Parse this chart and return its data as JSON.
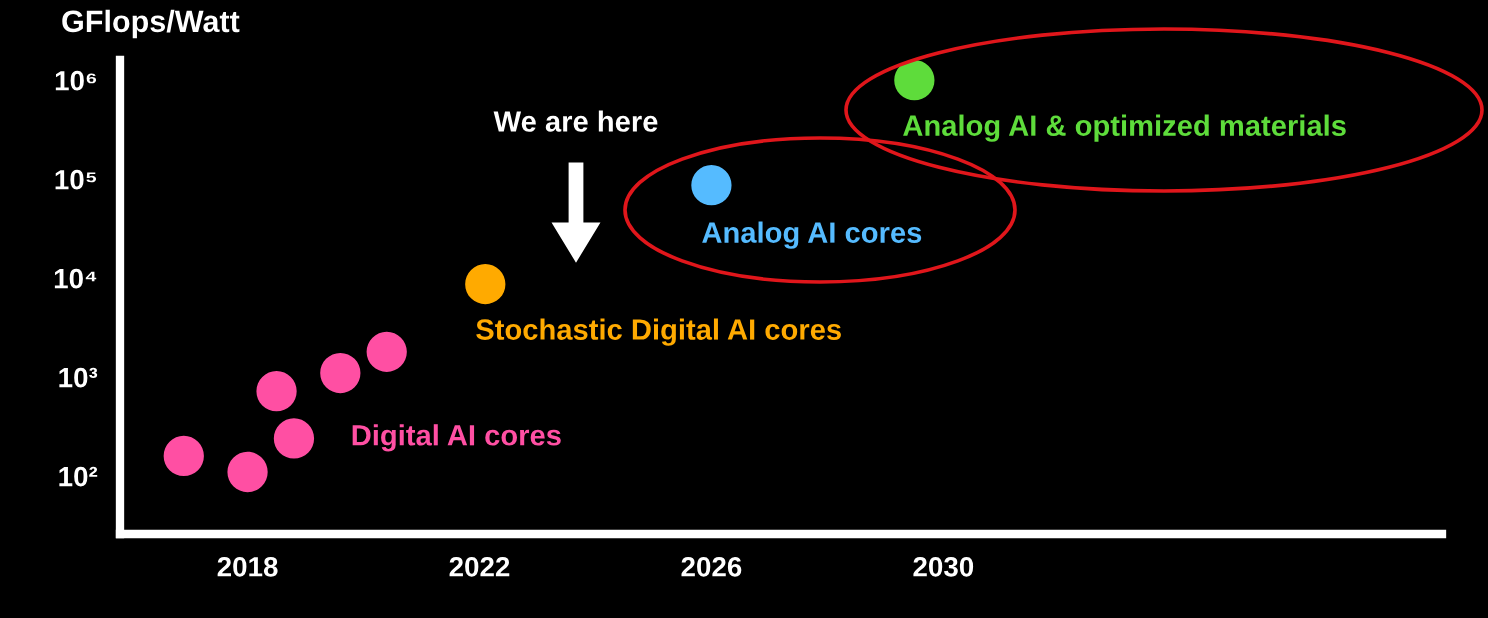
{
  "chart_data": {
    "type": "scatter",
    "ylabel": "GFlops/Watt",
    "log": "y",
    "marker": "circle",
    "grid": false,
    "legend": false,
    "xlim": [
      2015.8,
      2038.6
    ],
    "xticks": [
      2018,
      2022,
      2026,
      2030
    ],
    "ylim": [
      26,
      1600000
    ],
    "yticks": [
      {
        "value": 100,
        "label": "10²"
      },
      {
        "value": 1000,
        "label": "10³"
      },
      {
        "value": 10000,
        "label": "10⁴"
      },
      {
        "value": 100000,
        "label": "10⁵"
      },
      {
        "value": 1000000,
        "label": "10⁶"
      }
    ],
    "series": [
      {
        "name": "Digital AI cores",
        "color": "#ff4fa3",
        "x": [
          2016.9,
          2018.0,
          2018.5,
          2018.8,
          2019.6,
          2020.4
        ],
        "values": [
          160,
          110,
          720,
          240,
          1100,
          1800
        ]
      },
      {
        "name": "Stochastic Digital AI cores",
        "color": "#ffaa00",
        "x": [
          2022.1
        ],
        "values": [
          8700
        ]
      },
      {
        "name": "Analog AI cores",
        "color": "#55bbff",
        "x": [
          2026.0
        ],
        "values": [
          87000
        ]
      },
      {
        "name": "Analog AI & optimized materials",
        "color": "#5edc3b",
        "x": [
          2029.5
        ],
        "values": [
          1000000
        ]
      }
    ],
    "annotations": [
      "We are here"
    ]
  }
}
